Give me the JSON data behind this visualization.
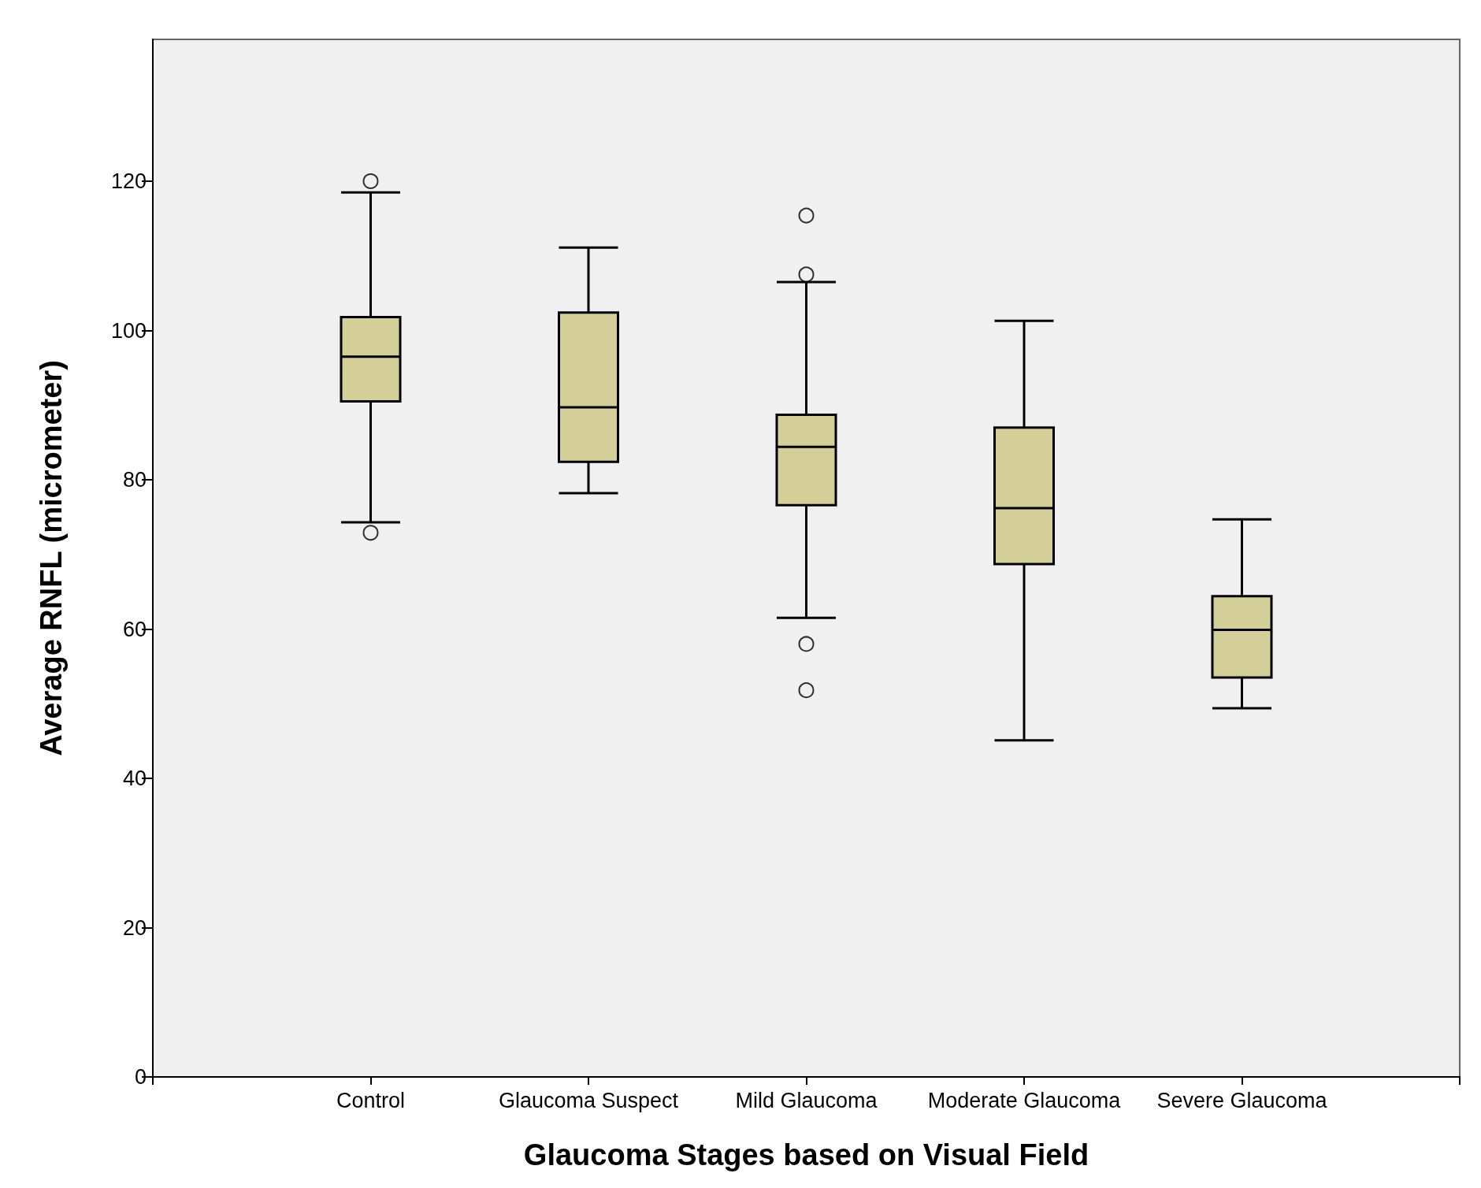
{
  "chart_data": {
    "type": "box",
    "xlabel": "Glaucoma Stages based on Visual Field",
    "ylabel": "Average RNFL (micrometer)",
    "categories": [
      "Control",
      "Glaucoma Suspect",
      "Mild Glaucoma",
      "Moderate Glaucoma",
      "Severe Glaucoma"
    ],
    "color": "#d4ce98",
    "boxes": [
      {
        "low": 74.3,
        "q1": 90.5,
        "median": 96.5,
        "q3": 101.8,
        "high": 118.5,
        "outliers": [
          120,
          72.9
        ]
      },
      {
        "low": 78.2,
        "q1": 82.4,
        "median": 89.7,
        "q3": 102.4,
        "high": 111.1
      },
      {
        "low": 61.5,
        "q1": 76.6,
        "median": 84.4,
        "q3": 88.7,
        "high": 106.5,
        "outliers": [
          115.4,
          107.5,
          58,
          51.8
        ]
      },
      {
        "low": 45.1,
        "q1": 68.7,
        "median": 76.2,
        "q3": 87,
        "high": 101.3
      },
      {
        "low": 49.4,
        "q1": 53.5,
        "median": 59.9,
        "q3": 64.4,
        "high": 74.7
      }
    ],
    "ylim": [
      0,
      139
    ],
    "yticks": [
      0,
      20,
      40,
      60,
      80,
      100,
      120
    ],
    "grid": false
  }
}
